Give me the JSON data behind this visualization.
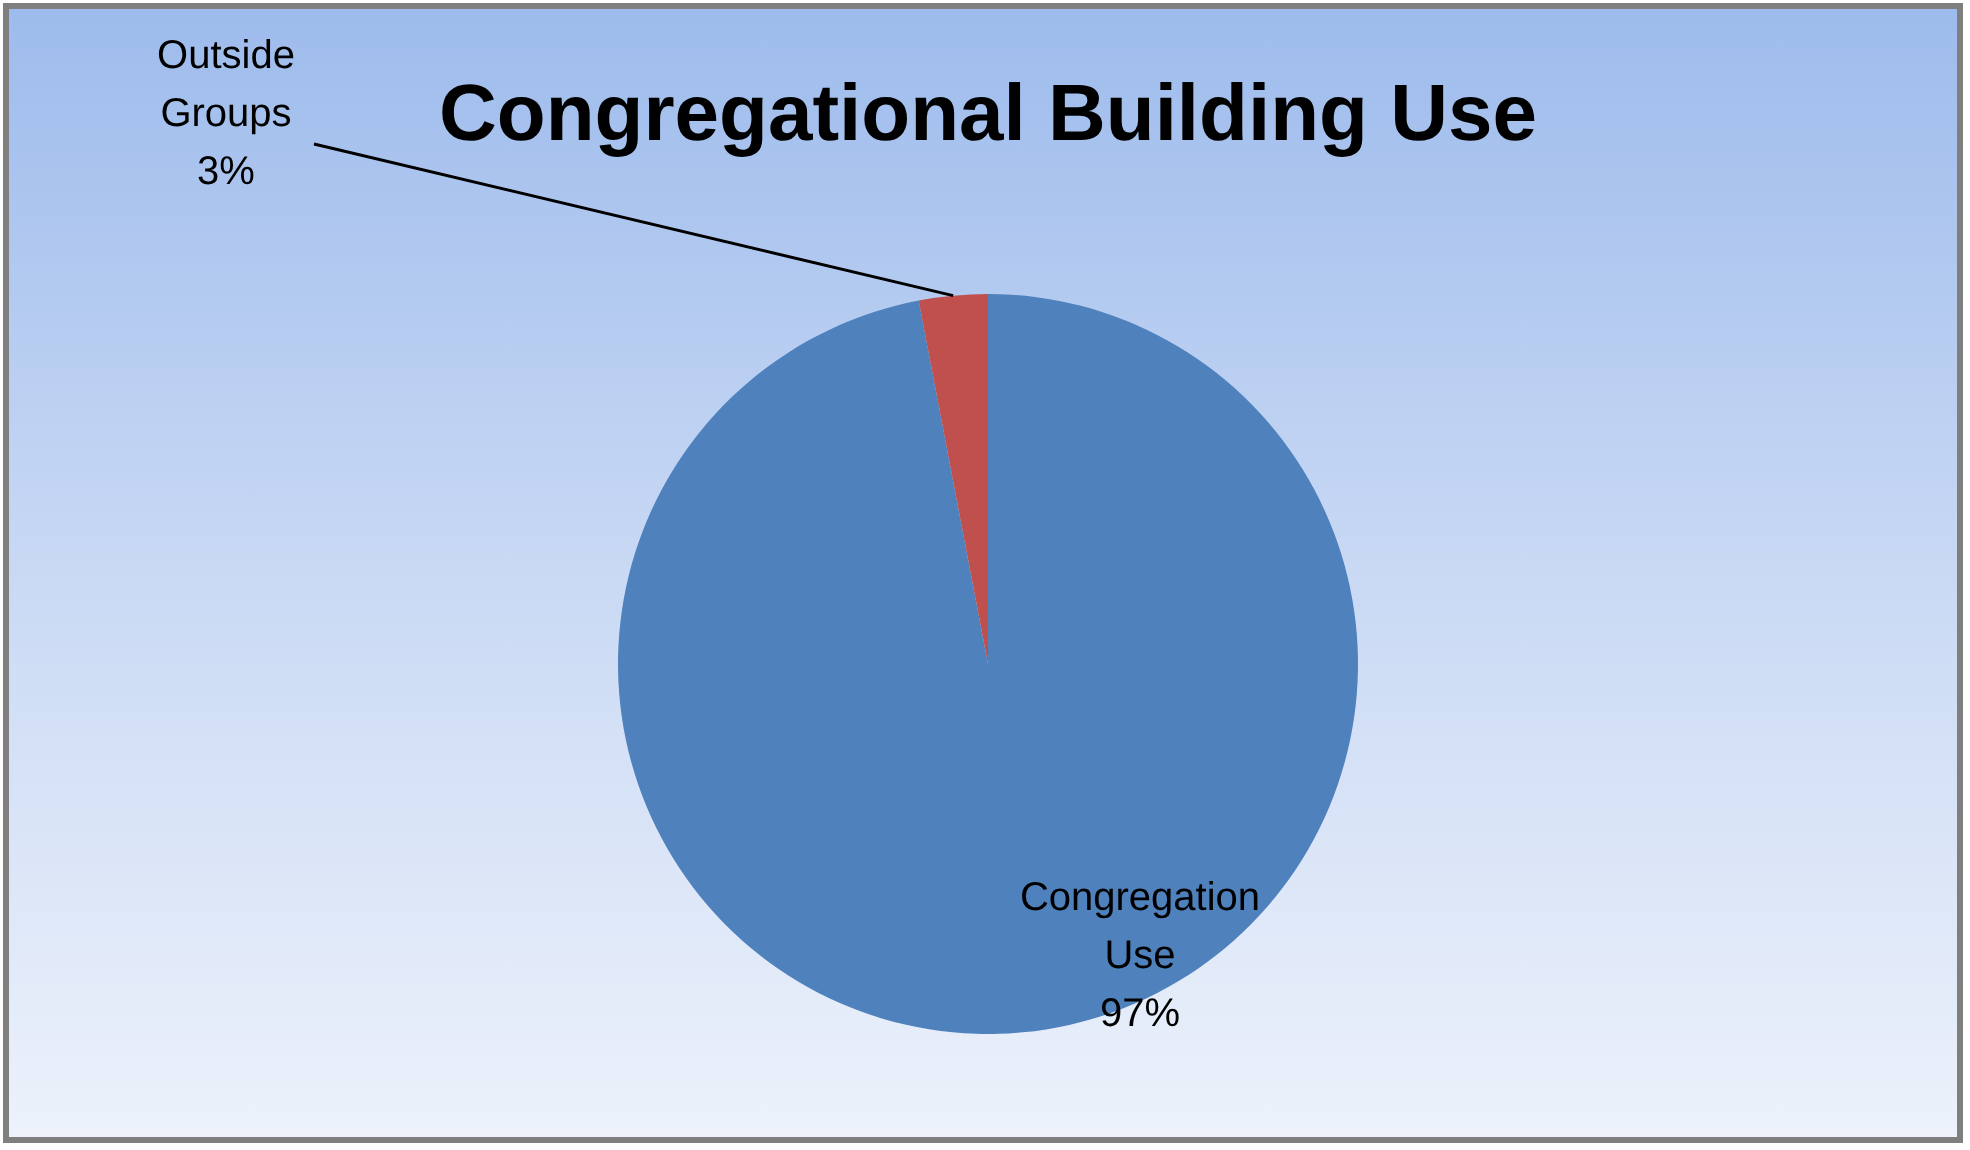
{
  "chart_data": {
    "type": "pie",
    "title": "Congregational Building Use",
    "categories": [
      "Congregation Use",
      "Outside Groups"
    ],
    "values": [
      97,
      3
    ],
    "colors": [
      "#4f81bd",
      "#c0504d"
    ],
    "value_labels": [
      "97%",
      "3%"
    ]
  }
}
